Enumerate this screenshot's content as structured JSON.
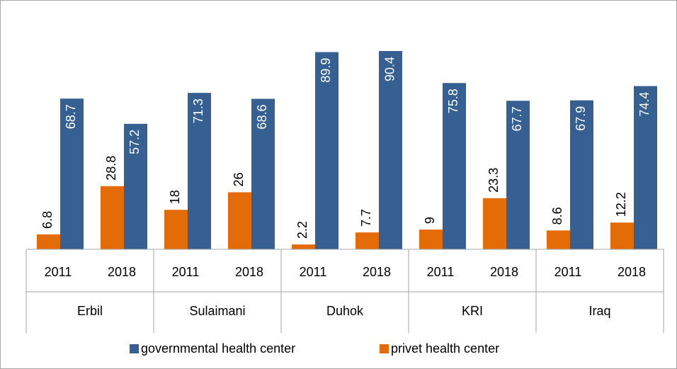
{
  "chart_data": {
    "type": "bar",
    "categories": [
      "2011",
      "2018",
      "2011",
      "2018",
      "2011",
      "2018",
      "2011",
      "2018",
      "2011",
      "2018"
    ],
    "groups": [
      "Erbil",
      "Sulaimani",
      "Duhok",
      "KRI",
      "Iraq"
    ],
    "series": [
      {
        "name": "privet health center",
        "color": "#e36c09",
        "values": [
          6.8,
          28.8,
          18,
          26,
          2.2,
          7.7,
          9,
          23.3,
          8.6,
          12.2
        ]
      },
      {
        "name": "governmental health center",
        "color": "#366092",
        "values": [
          68.7,
          57.2,
          71.3,
          68.6,
          89.9,
          90.4,
          75.8,
          67.7,
          67.9,
          74.4
        ]
      }
    ],
    "legend": "bottom"
  }
}
